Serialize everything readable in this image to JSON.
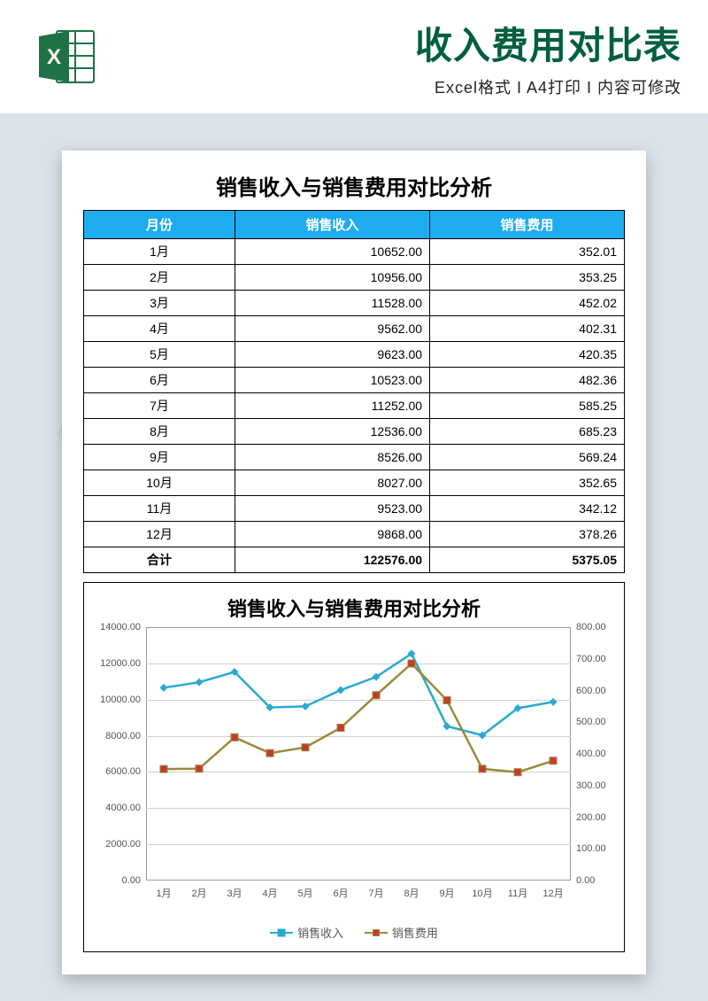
{
  "header": {
    "title": "收入费用对比表",
    "subtitle": "Excel格式 I A4打印 I 内容可修改",
    "title_color": "#005f3d",
    "excel_icon_green": "#1f7246",
    "excel_icon_white": "#ffffff"
  },
  "background_color": "#dce2ea",
  "document": {
    "title": "销售收入与销售费用对比分析",
    "table": {
      "header_bg": "#1eacf0",
      "header_color": "#ffffff",
      "border_color": "#000000",
      "columns": [
        "月份",
        "销售收入",
        "销售费用"
      ],
      "rows": [
        {
          "month": "1月",
          "revenue": "10652.00",
          "expense": "352.01",
          "rev_n": 10652,
          "exp_n": 352.01
        },
        {
          "month": "2月",
          "revenue": "10956.00",
          "expense": "353.25",
          "rev_n": 10956,
          "exp_n": 353.25
        },
        {
          "month": "3月",
          "revenue": "11528.00",
          "expense": "452.02",
          "rev_n": 11528,
          "exp_n": 452.02
        },
        {
          "month": "4月",
          "revenue": "9562.00",
          "expense": "402.31",
          "rev_n": 9562,
          "exp_n": 402.31
        },
        {
          "month": "5月",
          "revenue": "9623.00",
          "expense": "420.35",
          "rev_n": 9623,
          "exp_n": 420.35
        },
        {
          "month": "6月",
          "revenue": "10523.00",
          "expense": "482.36",
          "rev_n": 10523,
          "exp_n": 482.36
        },
        {
          "month": "7月",
          "revenue": "11252.00",
          "expense": "585.25",
          "rev_n": 11252,
          "exp_n": 585.25
        },
        {
          "month": "8月",
          "revenue": "12536.00",
          "expense": "685.23",
          "rev_n": 12536,
          "exp_n": 685.23
        },
        {
          "month": "9月",
          "revenue": "8526.00",
          "expense": "569.24",
          "rev_n": 8526,
          "exp_n": 569.24
        },
        {
          "month": "10月",
          "revenue": "8027.00",
          "expense": "352.65",
          "rev_n": 8027,
          "exp_n": 352.65
        },
        {
          "month": "11月",
          "revenue": "9523.00",
          "expense": "342.12",
          "rev_n": 9523,
          "exp_n": 342.12
        },
        {
          "month": "12月",
          "revenue": "9868.00",
          "expense": "378.26",
          "rev_n": 9868,
          "exp_n": 378.26
        }
      ],
      "total": {
        "label": "合计",
        "revenue": "122576.00",
        "expense": "5375.05"
      }
    },
    "chart": {
      "title": "销售收入与销售费用对比分析",
      "type": "line-dual-axis",
      "left_axis": {
        "min": 0,
        "max": 14000,
        "step": 2000,
        "label_suffix": ".00"
      },
      "right_axis": {
        "min": 0,
        "max": 800,
        "step": 100,
        "label_suffix": ".00"
      },
      "grid_color": "#cfcfcf",
      "border_color": "#9a9a9a",
      "series": [
        {
          "name": "销售收入",
          "axis": "left",
          "color": "#2aa9d2",
          "marker": "diamond",
          "line_width": 2.5,
          "marker_size": 9
        },
        {
          "name": "销售费用",
          "axis": "right",
          "color": "#9a8a3a",
          "marker_fill": "#c33b2f",
          "marker": "square",
          "line_width": 2.5,
          "marker_size": 8
        }
      ],
      "categories": [
        "1月",
        "2月",
        "3月",
        "4月",
        "5月",
        "6月",
        "7月",
        "8月",
        "9月",
        "10月",
        "11月",
        "12月"
      ],
      "legend_labels": [
        "销售收入",
        "销售费用"
      ]
    }
  }
}
